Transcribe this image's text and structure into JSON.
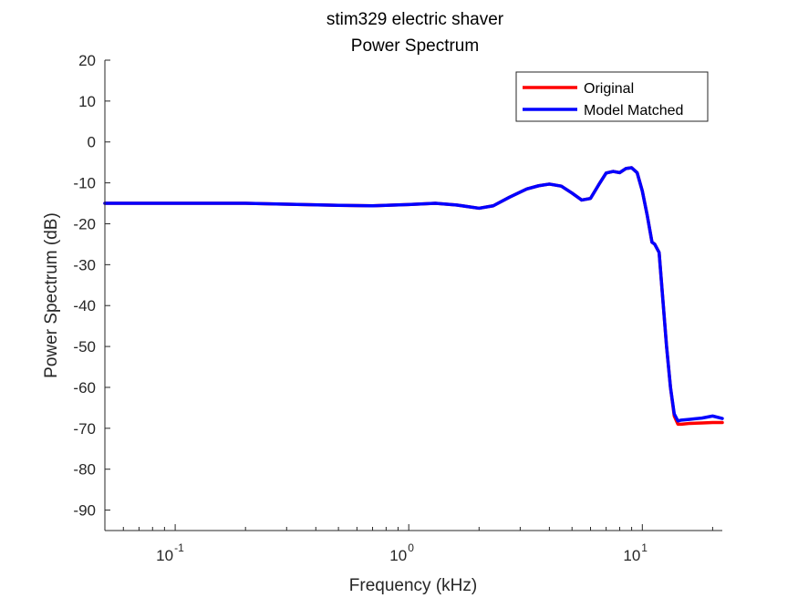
{
  "chart_data": {
    "type": "line",
    "title": [
      "stim329 electric shaver",
      "Power Spectrum"
    ],
    "xlabel": "Frequency (kHz)",
    "ylabel": "Power Spectrum (dB)",
    "xscale": "log",
    "xlim": [
      0.05,
      22
    ],
    "ylim": [
      -95,
      20
    ],
    "yticks": [
      20,
      10,
      0,
      -10,
      -20,
      -30,
      -40,
      -50,
      -60,
      -70,
      -80,
      -90
    ],
    "xticks": [
      {
        "value": 0.1,
        "base": "10",
        "exp": "-1"
      },
      {
        "value": 1,
        "base": "10",
        "exp": "0"
      },
      {
        "value": 10,
        "base": "10",
        "exp": "1"
      }
    ],
    "grid": false,
    "legend_position": "top-right",
    "series": [
      {
        "name": "Original",
        "color": "#ff0000",
        "x": [
          0.05,
          0.1,
          0.2,
          0.3,
          0.5,
          0.7,
          1.0,
          1.3,
          1.6,
          2.0,
          2.3,
          2.7,
          3.2,
          3.6,
          4.0,
          4.5,
          5.0,
          5.5,
          6.0,
          6.5,
          7.0,
          7.5,
          8.0,
          8.5,
          9.0,
          9.5,
          10.0,
          10.5,
          11.0,
          11.3,
          11.8,
          12.3,
          12.7,
          13.2,
          13.7,
          14.2,
          14.7,
          16.0,
          18.0,
          20.0,
          22.0
        ],
        "y": [
          -15.0,
          -15.0,
          -15.0,
          -15.2,
          -15.5,
          -15.6,
          -15.3,
          -15.0,
          -15.4,
          -16.2,
          -15.6,
          -13.5,
          -11.5,
          -10.7,
          -10.3,
          -10.8,
          -12.5,
          -14.2,
          -13.8,
          -10.5,
          -7.6,
          -7.2,
          -7.5,
          -6.5,
          -6.3,
          -7.5,
          -12.0,
          -18.0,
          -24.5,
          -25.0,
          -27.0,
          -40.0,
          -50.0,
          -60.0,
          -67.0,
          -69.0,
          -69.0,
          -68.8,
          -68.7,
          -68.6,
          -68.6
        ]
      },
      {
        "name": "Model Matched",
        "color": "#0000ff",
        "x": [
          0.05,
          0.1,
          0.2,
          0.3,
          0.5,
          0.7,
          1.0,
          1.3,
          1.6,
          2.0,
          2.3,
          2.7,
          3.2,
          3.6,
          4.0,
          4.5,
          5.0,
          5.5,
          6.0,
          6.5,
          7.0,
          7.5,
          8.0,
          8.5,
          9.0,
          9.5,
          10.0,
          10.5,
          11.0,
          11.3,
          11.8,
          12.3,
          12.7,
          13.2,
          13.7,
          14.2,
          14.7,
          16.0,
          18.0,
          20.0,
          22.0
        ],
        "y": [
          -15.0,
          -15.0,
          -15.0,
          -15.2,
          -15.5,
          -15.6,
          -15.3,
          -15.0,
          -15.4,
          -16.2,
          -15.6,
          -13.5,
          -11.5,
          -10.7,
          -10.3,
          -10.8,
          -12.5,
          -14.2,
          -13.8,
          -10.5,
          -7.6,
          -7.2,
          -7.5,
          -6.5,
          -6.3,
          -7.5,
          -12.0,
          -18.0,
          -24.5,
          -25.0,
          -27.0,
          -40.0,
          -50.0,
          -60.0,
          -66.5,
          -68.2,
          -68.0,
          -67.8,
          -67.5,
          -67.0,
          -67.6
        ]
      }
    ]
  }
}
